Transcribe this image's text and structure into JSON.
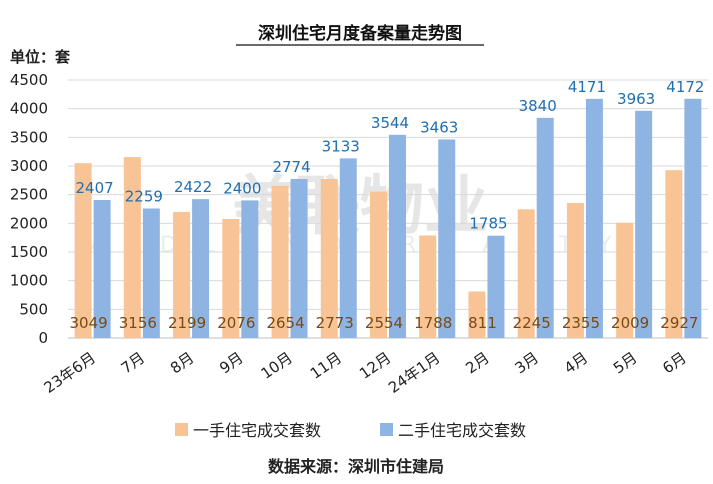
{
  "title": "深圳住宅月度备案量走势图",
  "unit_label": "单位：套",
  "source": "数据来源：深圳市住建局",
  "watermark": {
    "main": "美联物业",
    "sub": "MIDLAND REALTY"
  },
  "colors": {
    "new": "#f8c395",
    "used": "#8eb4e3",
    "grid": "#d9d9d9"
  },
  "chart_data": {
    "type": "bar",
    "categories": [
      "23年6月",
      "7月",
      "8月",
      "9月",
      "10月",
      "11月",
      "12月",
      "24年1月",
      "2月",
      "3月",
      "4月",
      "5月",
      "6月"
    ],
    "series": [
      {
        "name": "一手住宅成交套数",
        "values": [
          3049,
          3156,
          2199,
          2076,
          2654,
          2773,
          2554,
          1788,
          811,
          2245,
          2355,
          2009,
          2927
        ]
      },
      {
        "name": "二手住宅成交套数",
        "values": [
          2407,
          2259,
          2422,
          2400,
          2774,
          3133,
          3544,
          3463,
          1785,
          3840,
          4171,
          3963,
          4172
        ]
      }
    ],
    "y_ticks": [
      "0",
      "500",
      "1000",
      "1500",
      "2000",
      "2500",
      "3000",
      "3500",
      "4000",
      "4500"
    ],
    "ylim": [
      0,
      4500
    ],
    "grid": true,
    "legend_position": "bottom"
  }
}
